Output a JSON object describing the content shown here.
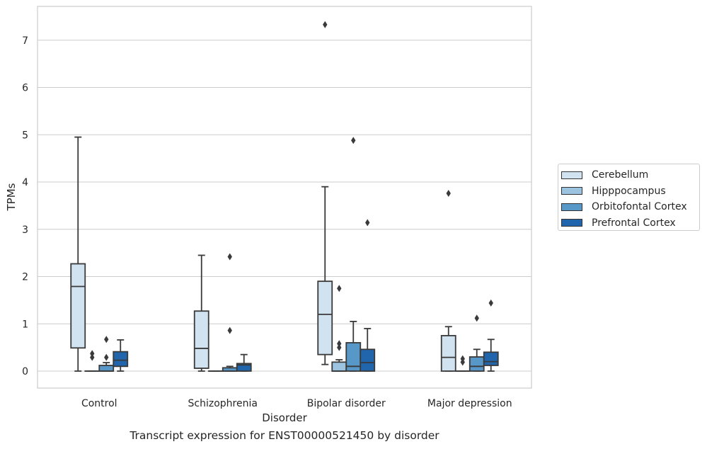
{
  "chart_data": {
    "type": "box",
    "title": "",
    "xlabel": "Disorder",
    "ylabel": "TPMs",
    "caption": "Transcript expression for ENST00000521450 by disorder",
    "ylim": [
      -0.35,
      7.7
    ],
    "yticks": [
      0,
      1,
      2,
      3,
      4,
      5,
      6,
      7
    ],
    "grid": true,
    "legend_position": "right",
    "categories": [
      "Control",
      "Schizophrenia",
      "Bipolar disorder",
      "Major depression"
    ],
    "series": [
      {
        "name": "Cerebellum",
        "color": "#d1e2f1",
        "boxes": [
          {
            "whislo": 0.0,
            "q1": 0.49,
            "med": 1.79,
            "q3": 2.27,
            "whishi": 4.95,
            "fliers": []
          },
          {
            "whislo": 0.0,
            "q1": 0.06,
            "med": 0.48,
            "q3": 1.27,
            "whishi": 2.45,
            "fliers": []
          },
          {
            "whislo": 0.14,
            "q1": 0.35,
            "med": 1.2,
            "q3": 1.9,
            "whishi": 3.9,
            "fliers": [
              7.33
            ]
          },
          {
            "whislo": 0.0,
            "q1": 0.0,
            "med": 0.29,
            "q3": 0.75,
            "whishi": 0.94,
            "fliers": [
              3.76
            ]
          }
        ]
      },
      {
        "name": "Hipppocampus",
        "color": "#9cc4e0",
        "boxes": [
          {
            "whislo": 0.0,
            "q1": 0.0,
            "med": 0.0,
            "q3": 0.0,
            "whishi": 0.0,
            "fliers": [
              0.37,
              0.29
            ]
          },
          {
            "whislo": 0.0,
            "q1": 0.0,
            "med": 0.0,
            "q3": 0.0,
            "whishi": 0.0,
            "fliers": []
          },
          {
            "whislo": 0.0,
            "q1": 0.0,
            "med": 0.0,
            "q3": 0.19,
            "whishi": 0.24,
            "fliers": [
              1.75,
              0.58,
              0.5
            ]
          },
          {
            "whislo": 0.0,
            "q1": 0.0,
            "med": 0.0,
            "q3": 0.0,
            "whishi": 0.0,
            "fliers": [
              0.26,
              0.19
            ]
          }
        ]
      },
      {
        "name": "Orbitofontal Cortex",
        "color": "#5898c8",
        "boxes": [
          {
            "whislo": 0.0,
            "q1": 0.0,
            "med": 0.0,
            "q3": 0.12,
            "whishi": 0.18,
            "fliers": [
              0.67,
              0.29
            ]
          },
          {
            "whislo": 0.0,
            "q1": 0.0,
            "med": 0.0,
            "q3": 0.07,
            "whishi": 0.1,
            "fliers": [
              2.42,
              0.86
            ]
          },
          {
            "whislo": 0.0,
            "q1": 0.0,
            "med": 0.1,
            "q3": 0.6,
            "whishi": 1.05,
            "fliers": [
              4.88
            ]
          },
          {
            "whislo": 0.0,
            "q1": 0.0,
            "med": 0.1,
            "q3": 0.3,
            "whishi": 0.46,
            "fliers": [
              1.12
            ]
          }
        ]
      },
      {
        "name": "Prefrontal Cortex",
        "color": "#2166ac",
        "boxes": [
          {
            "whislo": 0.0,
            "q1": 0.1,
            "med": 0.23,
            "q3": 0.41,
            "whishi": 0.66,
            "fliers": []
          },
          {
            "whislo": 0.0,
            "q1": 0.0,
            "med": 0.13,
            "q3": 0.16,
            "whishi": 0.35,
            "fliers": []
          },
          {
            "whislo": 0.0,
            "q1": 0.0,
            "med": 0.18,
            "q3": 0.46,
            "whishi": 0.9,
            "fliers": [
              3.14
            ]
          },
          {
            "whislo": 0.0,
            "q1": 0.12,
            "med": 0.2,
            "q3": 0.4,
            "whishi": 0.67,
            "fliers": [
              1.44
            ]
          }
        ]
      }
    ]
  }
}
